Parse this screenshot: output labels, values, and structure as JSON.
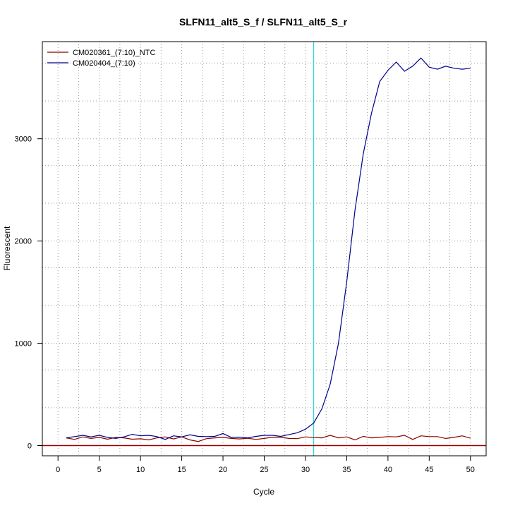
{
  "chart_data": {
    "type": "line",
    "title": "SLFN11_alt5_S_f / SLFN11_alt5_S_r",
    "xlabel": "Cycle",
    "ylabel": "Fluorescent",
    "xlim": [
      -1.9,
      51.9
    ],
    "ylim": [
      -100,
      3950
    ],
    "x_ticks": [
      0,
      5,
      10,
      15,
      20,
      25,
      30,
      35,
      40,
      45,
      50
    ],
    "y_ticks": [
      0,
      1000,
      2000,
      3000
    ],
    "x_minor_grid": [
      2.5,
      7.5,
      12.5,
      17.5,
      22.5,
      27.5,
      32.5,
      37.5,
      42.5,
      47.5
    ],
    "y_minor_grid": [
      370,
      740,
      1370,
      1740,
      2370,
      2740,
      3370,
      3740
    ],
    "grid": true,
    "legend_position": "top-left",
    "threshold": {
      "x": 31,
      "color": "#00d0d0"
    },
    "baseline": {
      "y": 0,
      "color": "#a00000"
    },
    "x": [
      1,
      2,
      3,
      4,
      5,
      6,
      7,
      8,
      9,
      10,
      11,
      12,
      13,
      14,
      15,
      16,
      17,
      18,
      19,
      20,
      21,
      22,
      23,
      24,
      25,
      26,
      27,
      28,
      29,
      30,
      31,
      32,
      33,
      34,
      35,
      36,
      37,
      38,
      39,
      40,
      41,
      42,
      43,
      44,
      45,
      46,
      47,
      48,
      49,
      50
    ],
    "series": [
      {
        "name": "CM020361_(7:10)_NTC",
        "color": "#8b0000",
        "values": [
          75,
          60,
          85,
          70,
          80,
          62,
          80,
          75,
          62,
          66,
          55,
          75,
          85,
          65,
          85,
          55,
          40,
          68,
          75,
          80,
          70,
          65,
          72,
          60,
          70,
          82,
          80,
          70,
          68,
          85,
          78,
          75,
          100,
          75,
          85,
          55,
          90,
          75,
          80,
          88,
          85,
          100,
          60,
          95,
          88,
          88,
          70,
          80,
          95,
          72
        ]
      },
      {
        "name": "CM020404_(7:10)",
        "color": "#00008b",
        "values": [
          75,
          88,
          100,
          85,
          100,
          80,
          70,
          85,
          110,
          95,
          100,
          88,
          60,
          95,
          85,
          105,
          90,
          88,
          90,
          118,
          80,
          82,
          75,
          90,
          100,
          100,
          90,
          108,
          125,
          160,
          220,
          360,
          600,
          1000,
          1600,
          2300,
          2850,
          3250,
          3560,
          3670,
          3750,
          3660,
          3710,
          3790,
          3700,
          3680,
          3710,
          3690,
          3680,
          3690
        ]
      }
    ]
  }
}
